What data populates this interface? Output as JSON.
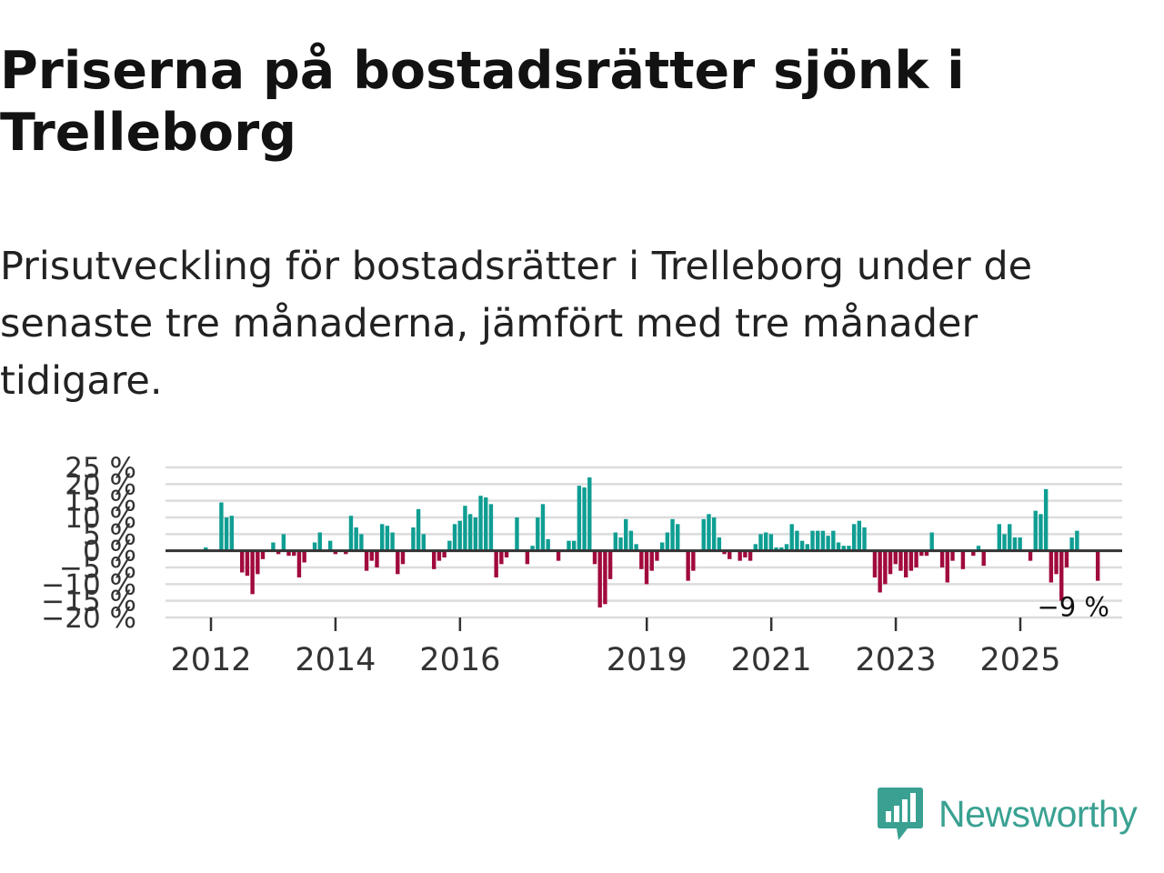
{
  "header": {
    "title": "Priserna på bostadsrätter sjönk i Trelleborg",
    "subtitle": "Prisutveckling för bostadsrätter i Trelleborg under de senaste tre månaderna, jämfört med tre månader tidigare."
  },
  "branding": {
    "name": "Newsworthy"
  },
  "colors": {
    "positive": "#0f9e93",
    "negative": "#a10a3c",
    "grid": "#dcdcdc",
    "zero": "#333333",
    "brand": "#3aa192"
  },
  "chart_data": {
    "type": "bar",
    "title": "",
    "xlabel": "",
    "ylabel": "",
    "ylim": [
      -20,
      25
    ],
    "y_ticks": [
      -20,
      -15,
      -10,
      -5,
      0,
      5,
      10,
      15,
      20,
      25
    ],
    "y_tick_labels": [
      "−20 %",
      "−15 %",
      "−10 %",
      "−5 %",
      "0 %",
      "5 %",
      "10 %",
      "15 %",
      "20 %",
      "25 %"
    ],
    "x_ticks": [
      {
        "label": "2012",
        "value": 2012
      },
      {
        "label": "2014",
        "value": 2014
      },
      {
        "label": "2016",
        "value": 2016
      },
      {
        "label": "2019",
        "value": 2019
      },
      {
        "label": "2021",
        "value": 2021
      },
      {
        "label": "2023",
        "value": 2023
      },
      {
        "label": "2025",
        "value": 2025
      }
    ],
    "x_start": 2011.75,
    "x_step": 0.0833,
    "values": [
      0,
      0,
      1,
      0,
      0,
      14.5,
      10,
      10.5,
      0,
      -6.5,
      -7.5,
      -13,
      -7,
      -2.5,
      0,
      2.5,
      -1,
      5,
      -1.5,
      -1.5,
      -8,
      -3.5,
      0,
      2.5,
      5.5,
      0,
      3,
      -1,
      0,
      -1,
      10.5,
      7,
      5,
      -6,
      -3,
      -5,
      8,
      7.5,
      5.5,
      -7,
      -4,
      0,
      7,
      12.5,
      5,
      0,
      -5.5,
      -3,
      -2,
      3,
      8,
      9,
      13.5,
      11,
      10,
      16.5,
      16,
      14,
      -8,
      -4,
      -2,
      0,
      10,
      0,
      -4,
      1.5,
      10,
      14,
      3.5,
      0,
      -3,
      0,
      3,
      3,
      19.5,
      19,
      22,
      -4,
      -17,
      -16,
      -8.5,
      5.5,
      4,
      9.5,
      6,
      2,
      -5.5,
      -10,
      -6,
      -3,
      2.5,
      5.5,
      9.5,
      8,
      0,
      -9,
      -6,
      0,
      9.5,
      11,
      10,
      4,
      -1,
      -2.5,
      0,
      -3,
      -2,
      -3,
      2,
      5,
      5.5,
      5,
      1,
      1,
      2,
      8,
      6,
      3,
      2,
      6,
      6,
      6,
      4.5,
      6,
      2.5,
      1.5,
      1.5,
      8,
      9,
      7,
      0,
      -8,
      -12.5,
      -10,
      -7,
      -4,
      -6,
      -8,
      -6,
      -5,
      -1.5,
      -1.5,
      5.5,
      0,
      -5,
      -9.5,
      -3,
      0,
      -5.5,
      0,
      -1.5,
      1.5,
      -4.5,
      0,
      0,
      8,
      5,
      8,
      4,
      4,
      0,
      -3,
      12,
      11,
      18.5,
      -9.5,
      -7,
      -15,
      -5,
      4,
      6,
      0,
      0,
      0,
      -9
    ],
    "last_label": "−9 %"
  }
}
